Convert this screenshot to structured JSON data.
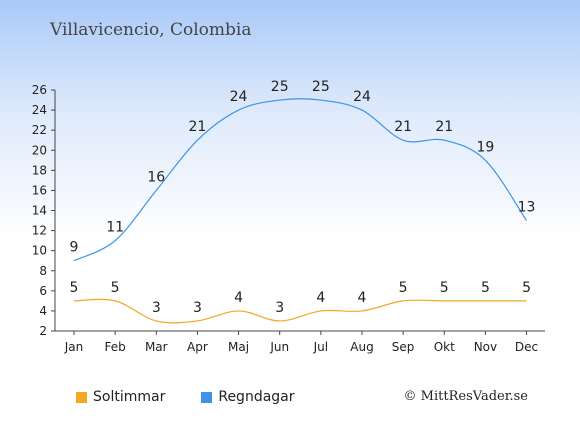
{
  "title": "Villavicencio, Colombia",
  "credit": "© MittResVader.se",
  "chart_data": {
    "type": "line",
    "categories": [
      "Jan",
      "Feb",
      "Mar",
      "Apr",
      "Maj",
      "Jun",
      "Jul",
      "Aug",
      "Sep",
      "Okt",
      "Nov",
      "Dec"
    ],
    "ylim": [
      2,
      26
    ],
    "yticks": [
      2,
      4,
      6,
      8,
      10,
      12,
      14,
      16,
      18,
      20,
      22,
      24,
      26
    ],
    "series": [
      {
        "name": "Soltimmar",
        "color": "#f5a623",
        "values": [
          5,
          5,
          3,
          3,
          4,
          3,
          4,
          4,
          5,
          5,
          5,
          5
        ]
      },
      {
        "name": "Regndagar",
        "color": "#3d95e8",
        "values": [
          9,
          11,
          16,
          21,
          24,
          25,
          25,
          24,
          21,
          21,
          19,
          13
        ]
      }
    ],
    "legend": "bottom-left"
  }
}
